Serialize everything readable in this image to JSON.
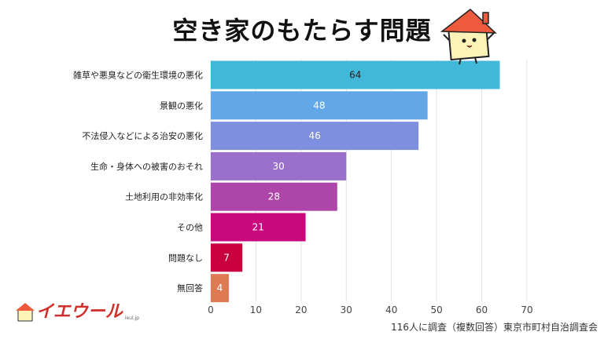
{
  "chart_data": {
    "type": "bar",
    "orientation": "horizontal",
    "title": "空き家のもたらす問題",
    "categories": [
      "雑草や悪臭などの衛生環境の悪化",
      "景観の悪化",
      "不法侵入などによる治安の悪化",
      "生命・身体への被害のおそれ",
      "土地利用の非効率化",
      "その他",
      "問題なし",
      "無回答"
    ],
    "values": [
      64,
      48,
      46,
      30,
      28,
      21,
      7,
      4
    ],
    "colors": [
      "#42b8d8",
      "#62a8e8",
      "#7f8fe0",
      "#9a70cc",
      "#ad46a8",
      "#c9087e",
      "#c8003f",
      "#e07a55"
    ],
    "xlim": [
      0,
      70
    ],
    "xticks": [
      0,
      10,
      20,
      30,
      40,
      50,
      60,
      70
    ],
    "grid": true,
    "note": "116人に調査（複数回答）東京市町村自治調査会"
  },
  "logo": {
    "text": "イエウール",
    "sub": "ieul.jp"
  }
}
